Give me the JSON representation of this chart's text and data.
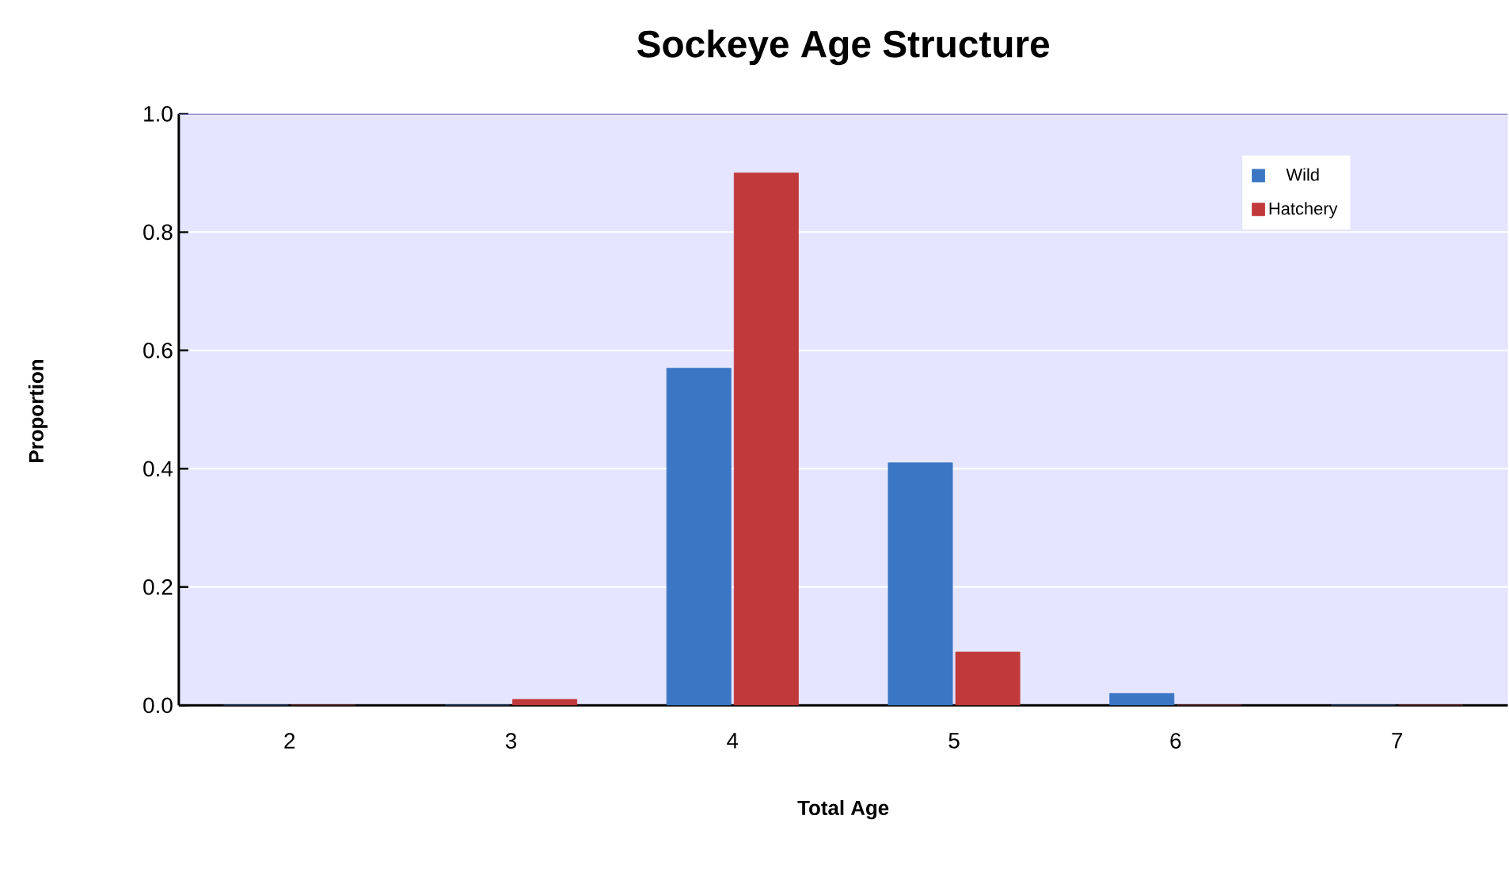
{
  "chart_data": {
    "type": "bar",
    "title": "Sockeye Age Structure",
    "xlabel": "Total Age",
    "ylabel": "Proportion",
    "categories": [
      "2",
      "3",
      "4",
      "5",
      "6",
      "7"
    ],
    "series": [
      {
        "name": "Wild",
        "color": "#3a76c4",
        "values": [
          0,
          0,
          0.57,
          0.41,
          0.02,
          0
        ]
      },
      {
        "name": "Hatchery",
        "color": "#c0393b",
        "values": [
          0,
          0.01,
          0.9,
          0.09,
          0,
          0
        ]
      }
    ],
    "ylim": [
      0,
      1.0
    ],
    "yticks": [
      {
        "value": 0,
        "label": "0.0"
      },
      {
        "value": 0.2,
        "label": "0.2"
      },
      {
        "value": 0.4,
        "label": "0.4"
      },
      {
        "value": 0.6,
        "label": "0.6"
      },
      {
        "value": 0.8,
        "label": "0.8"
      },
      {
        "value": 1.0,
        "label": "1.0"
      }
    ],
    "grid": "y",
    "legend": "top right"
  }
}
